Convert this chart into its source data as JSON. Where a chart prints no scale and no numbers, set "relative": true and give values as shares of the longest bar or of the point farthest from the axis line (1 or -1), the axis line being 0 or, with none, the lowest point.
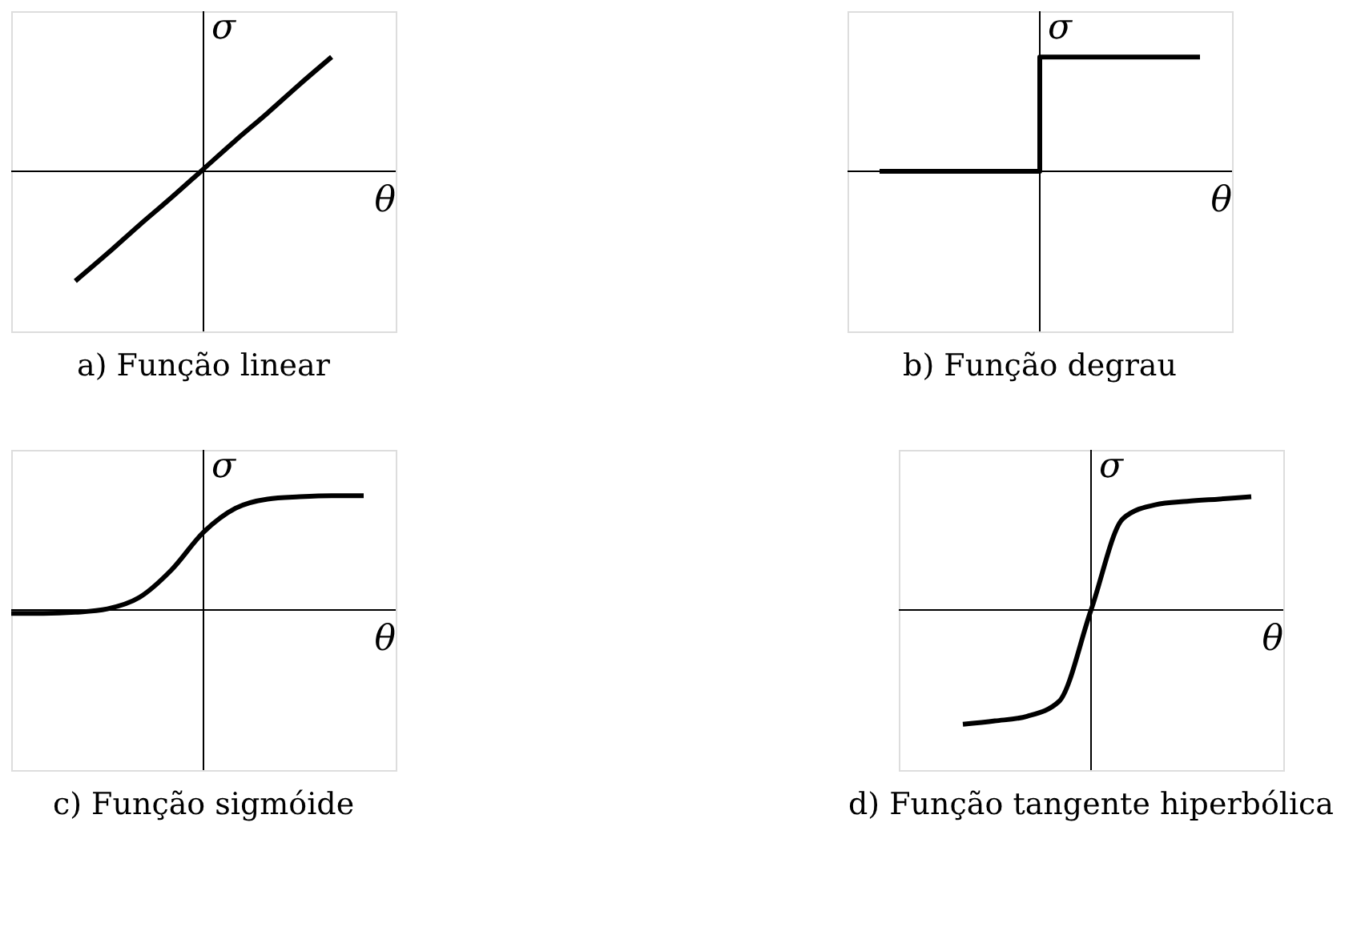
{
  "chart_data": [
    {
      "type": "line",
      "relative": true,
      "xlabel": "θ",
      "ylabel": "σ",
      "annotations": [
        "a) Função linear"
      ],
      "categories": [
        null,
        null,
        null,
        null,
        null,
        null,
        null,
        null,
        null,
        null,
        null,
        null,
        null
      ],
      "series": [
        {
          "color": "#000000",
          "values": [
            null,
            null,
            -0.96,
            -0.72,
            -0.47,
            -0.23,
            0.02,
            0.27,
            0.51,
            0.76,
            1.0,
            null,
            null
          ]
        }
      ]
    },
    {
      "type": "step",
      "relative": true,
      "xlabel": "θ",
      "ylabel": "σ",
      "annotations": [
        "b) Função degrau"
      ],
      "categories": [
        null,
        null,
        null,
        null,
        null,
        null,
        null,
        null,
        null,
        null,
        null,
        null,
        null
      ],
      "series": [
        {
          "color": "#000000",
          "values": [
            null,
            0,
            0,
            0,
            0,
            0,
            1,
            1,
            1,
            1,
            1,
            1,
            null
          ]
        }
      ]
    },
    {
      "type": "line",
      "relative": true,
      "xlabel": "θ",
      "ylabel": "σ",
      "annotations": [
        "c) Função sigmóide"
      ],
      "categories": [
        null,
        null,
        null,
        null,
        null,
        null,
        null,
        null,
        null,
        null,
        null,
        null,
        null
      ],
      "series": [
        {
          "color": "#000000",
          "values": [
            -0.03,
            -0.03,
            -0.02,
            0.01,
            0.11,
            0.35,
            0.68,
            0.89,
            0.97,
            0.99,
            1.0,
            1.0,
            null
          ]
        }
      ]
    },
    {
      "type": "line",
      "relative": true,
      "xlabel": "θ",
      "ylabel": "σ",
      "annotations": [
        "d) Função tangente hiperbólica"
      ],
      "categories": [
        null,
        null,
        null,
        null,
        null,
        null,
        null,
        null,
        null,
        null,
        null,
        null,
        null
      ],
      "series": [
        {
          "color": "#000000",
          "values": [
            null,
            null,
            -1.0,
            -0.97,
            -0.93,
            -0.8,
            0,
            0.8,
            0.92,
            0.95,
            0.97,
            0.99,
            null
          ]
        }
      ]
    }
  ]
}
